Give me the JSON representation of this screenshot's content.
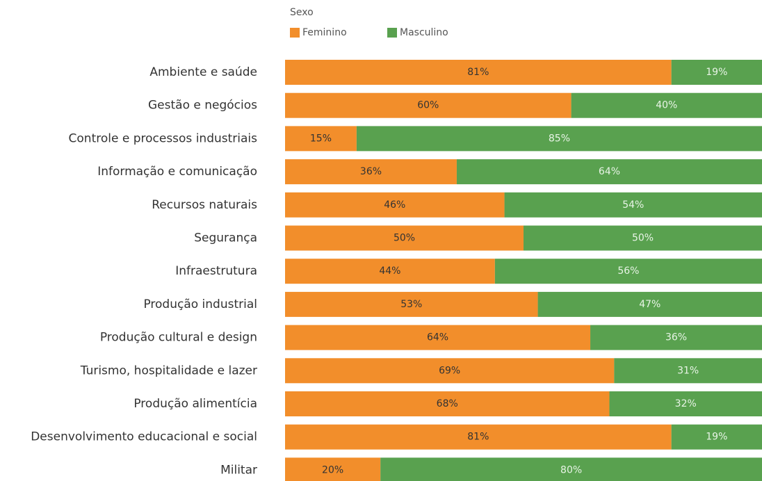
{
  "chart_data": {
    "type": "stacked-bar-horizontal",
    "legend_title": "Sexo",
    "categories": [
      "Ambiente e saúde",
      "Gestão e negócios",
      "Controle e processos industriais",
      "Informação e comunicação",
      "Recursos naturais",
      "Segurança",
      "Infraestrutura",
      "Produção industrial",
      "Produção cultural e design",
      "Turismo, hospitalidade e lazer",
      "Produção alimentícia",
      "Desenvolvimento educacional e social",
      "Militar"
    ],
    "series": [
      {
        "name": "Feminino",
        "color": "#f28e2b",
        "values": [
          81,
          60,
          15,
          36,
          46,
          50,
          44,
          53,
          64,
          69,
          68,
          81,
          20
        ],
        "value_labels": [
          "81%",
          "60%",
          "15%",
          "36%",
          "46%",
          "50%",
          "44%",
          "53%",
          "64%",
          "69%",
          "68%",
          "81%",
          "20%"
        ]
      },
      {
        "name": "Masculino",
        "color": "#59a14f",
        "values": [
          19,
          40,
          85,
          64,
          54,
          50,
          56,
          47,
          36,
          31,
          32,
          19,
          80
        ],
        "value_labels": [
          "19%",
          "40%",
          "85%",
          "64%",
          "54%",
          "50%",
          "56%",
          "47%",
          "36%",
          "31%",
          "32%",
          "19%",
          "80%"
        ]
      }
    ]
  }
}
